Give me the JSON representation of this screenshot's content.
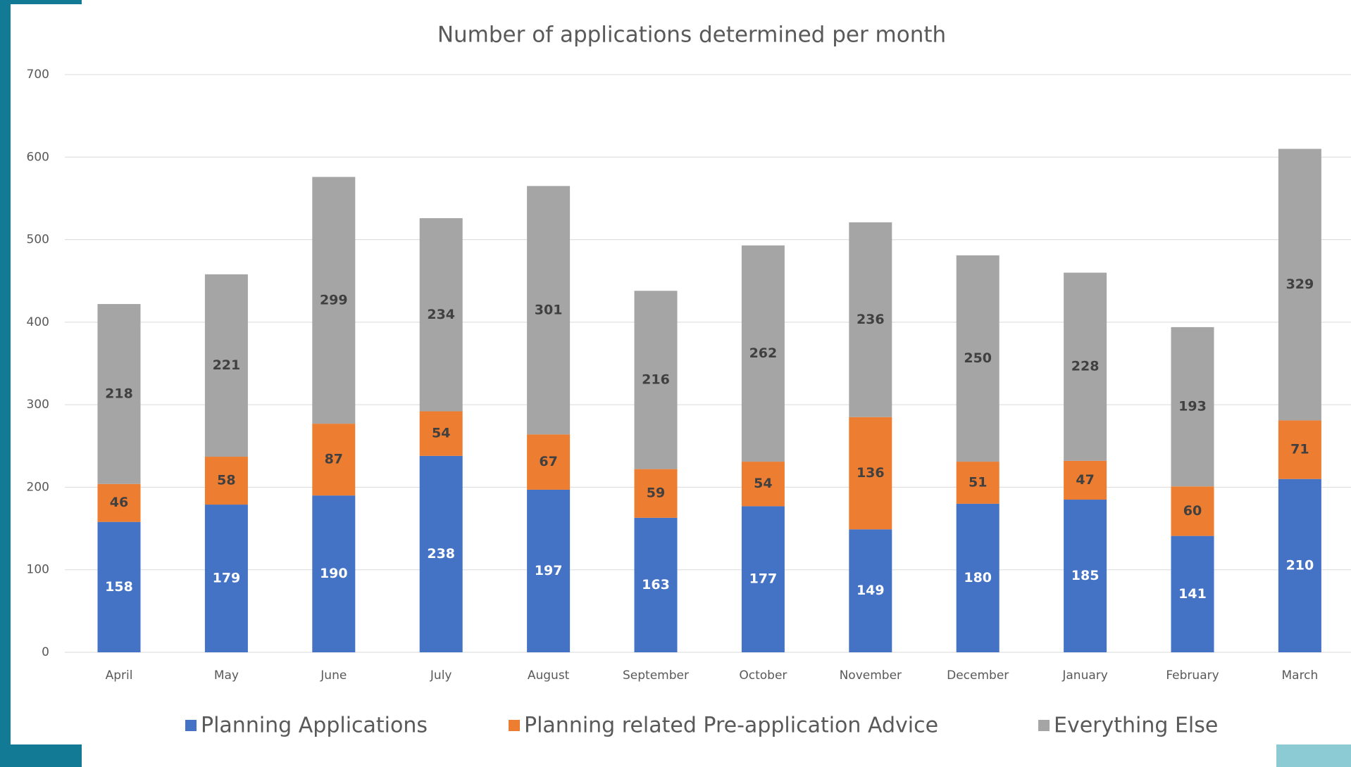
{
  "chart_data": {
    "type": "stacked_bar",
    "title": "Number of applications determined per month",
    "categories": [
      "April",
      "May",
      "June",
      "July",
      "August",
      "September",
      "October",
      "November",
      "December",
      "January",
      "February",
      "March"
    ],
    "series": [
      {
        "name": "Planning Applications",
        "color": "#4472c4",
        "values": [
          158,
          179,
          190,
          238,
          197,
          163,
          177,
          149,
          180,
          185,
          141,
          210
        ]
      },
      {
        "name": "Planning related Pre-application Advice",
        "color": "#ed7d31",
        "values": [
          46,
          58,
          87,
          54,
          67,
          59,
          54,
          136,
          51,
          47,
          60,
          71
        ]
      },
      {
        "name": "Everything Else",
        "color": "#a5a5a5",
        "values": [
          218,
          221,
          299,
          234,
          301,
          216,
          262,
          236,
          250,
          228,
          193,
          329
        ]
      }
    ],
    "ylim": [
      0,
      700
    ],
    "yticks": [
      0,
      100,
      200,
      300,
      400,
      500,
      600,
      700
    ],
    "grid": true,
    "legend": "bottom"
  }
}
